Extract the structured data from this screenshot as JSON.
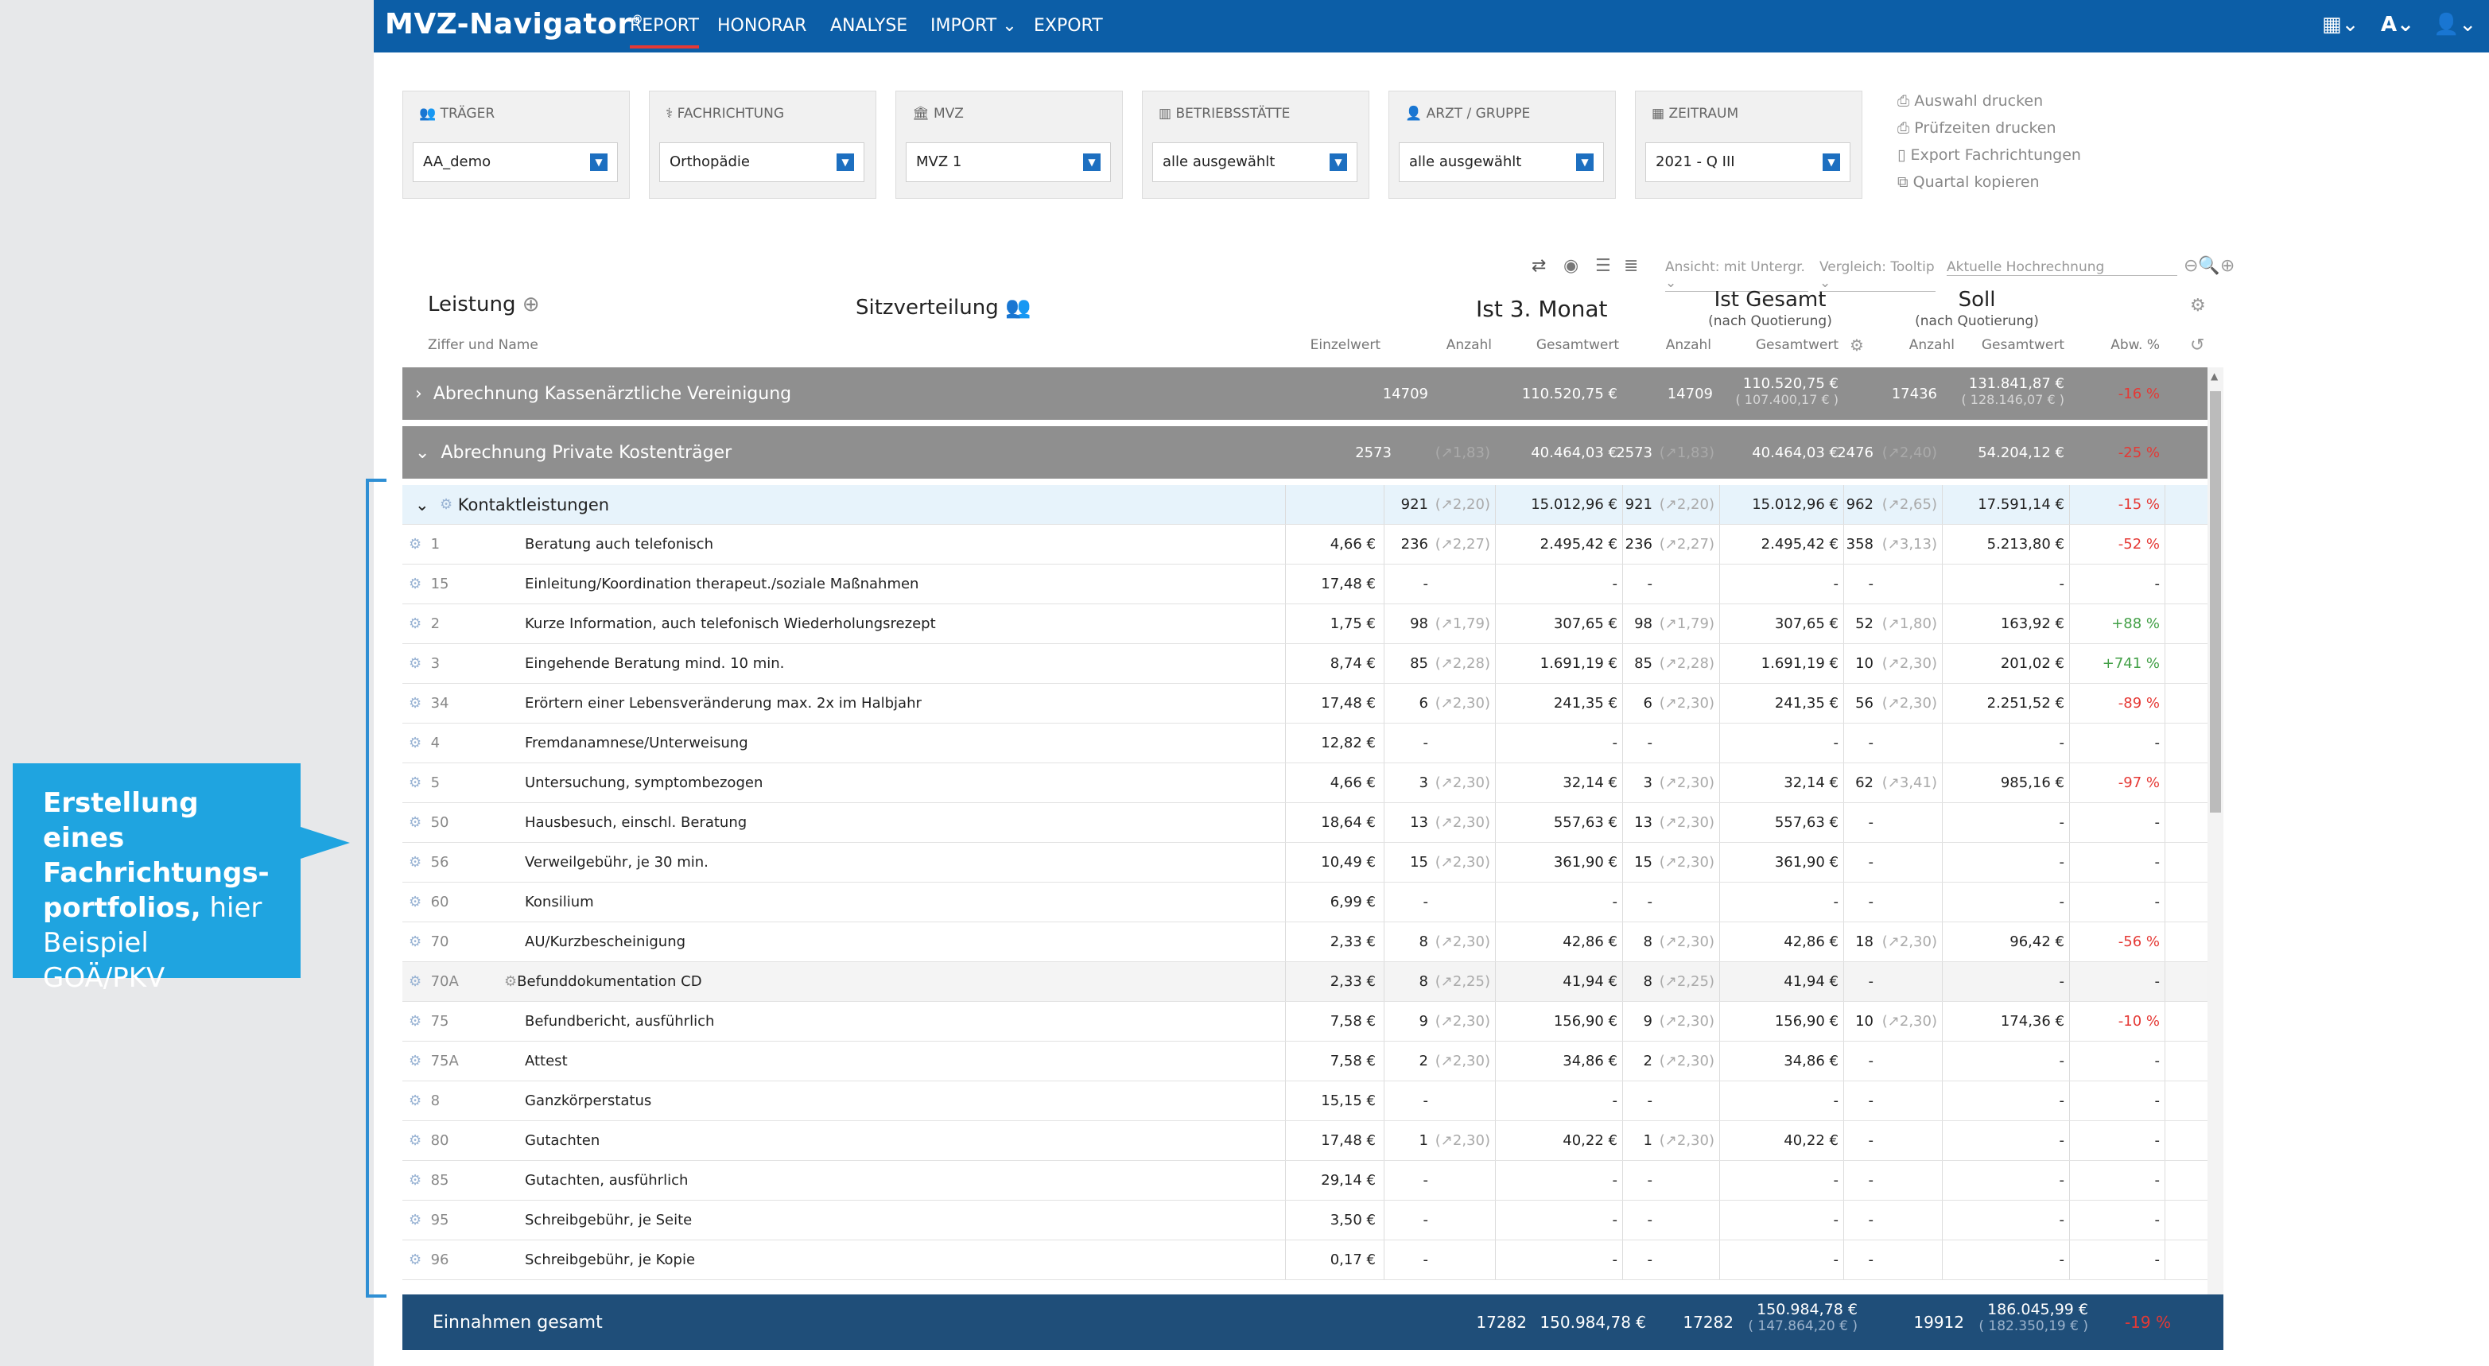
{
  "app": {
    "title": "MVZ-Navigator",
    "trademark": "®"
  },
  "nav": {
    "report": "REPORT",
    "honorar": "HONORAR",
    "analyse": "ANALYSE",
    "import": "IMPORT",
    "export": "EXPORT"
  },
  "filters": [
    {
      "label": "TRÄGER",
      "value": "AA_demo",
      "icon": "group-icon"
    },
    {
      "label": "FACHRICHTUNG",
      "value": "Orthopädie",
      "icon": "stethoscope-icon"
    },
    {
      "label": "MVZ",
      "value": "MVZ 1",
      "icon": "building-icon"
    },
    {
      "label": "BETRIEBSSTÄTTE",
      "value": "alle ausgewählt",
      "icon": "location-icon"
    },
    {
      "label": "ARZT / GRUPPE",
      "value": "alle ausgewählt",
      "icon": "user-icon"
    },
    {
      "label": "ZEITRAUM",
      "value": "2021 - Q III",
      "icon": "calendar-icon"
    }
  ],
  "actions": [
    "Auswahl drucken",
    "Prüfzeiten drucken",
    "Export Fachrichtungen",
    "Quartal kopieren"
  ],
  "toolbar": {
    "ansicht": "Ansicht: mit Untergr.",
    "vergleich": "Vergleich: Tooltip",
    "hochrechnung": "Aktuelle Hochrechnung"
  },
  "header": {
    "leistung": "Leistung",
    "ziffer": "Ziffer und Name",
    "sitz": "Sitzverteilung",
    "ist3": "Ist 3. Monat",
    "istges": "Ist Gesamt",
    "istges_sub": "(nach Quotierung)",
    "soll": "Soll",
    "soll_sub": "(nach Quotierung)",
    "einzelwert": "Einzelwert",
    "anzahl": "Anzahl",
    "gesamtwert": "Gesamtwert",
    "abw": "Abw. %"
  },
  "group1": {
    "label": "Abrechnung Kassenärztliche Vereinigung",
    "a1": "14709",
    "g1": "110.520,75 €",
    "a2": "14709",
    "g2": "110.520,75 €",
    "g2b": "( 107.400,17 € )",
    "a3": "17436",
    "g3": "131.841,87 €",
    "g3b": "( 128.146,07 € )",
    "abw": "-16 %"
  },
  "group2": {
    "label": "Abrechnung Private Kostenträger",
    "a1": "2573",
    "f1": "(↗1,83)",
    "g1": "40.464,03 €",
    "a2": "2573",
    "f2": "(↗1,83)",
    "g2": "40.464,03 €",
    "a3": "2476",
    "f3": "(↗2,40)",
    "g3": "54.204,12 €",
    "abw": "-25 %"
  },
  "subgroup": {
    "label": "Kontaktleistungen",
    "a1": "921",
    "f1": "(↗2,20)",
    "g1": "15.012,96 €",
    "a2": "921",
    "f2": "(↗2,20)",
    "g2": "15.012,96 €",
    "a3": "962",
    "f3": "(↗2,65)",
    "g3": "17.591,14 €",
    "abw": "-15 %"
  },
  "rows": [
    {
      "nr": "1",
      "name": "Beratung auch telefonisch",
      "ew": "4,66 €",
      "a1": "236",
      "f1": "(↗2,27)",
      "g1": "2.495,42 €",
      "a2": "236",
      "f2": "(↗2,27)",
      "g2": "2.495,42 €",
      "a3": "358",
      "f3": "(↗3,13)",
      "g3": "5.213,80 €",
      "abw": "-52 %",
      "abwc": "red"
    },
    {
      "nr": "15",
      "name": "Einleitung/Koordination therapeut./soziale Maßnahmen",
      "ew": "17,48 €",
      "a1": "-",
      "f1": "",
      "g1": "-",
      "a2": "-",
      "f2": "",
      "g2": "-",
      "a3": "-",
      "f3": "",
      "g3": "-",
      "abw": "-",
      "abwc": ""
    },
    {
      "nr": "2",
      "name": "Kurze Information, auch telefonisch Wiederholungsrezept",
      "ew": "1,75 €",
      "a1": "98",
      "f1": "(↗1,79)",
      "g1": "307,65 €",
      "a2": "98",
      "f2": "(↗1,79)",
      "g2": "307,65 €",
      "a3": "52",
      "f3": "(↗1,80)",
      "g3": "163,92 €",
      "abw": "+88 %",
      "abwc": "green"
    },
    {
      "nr": "3",
      "name": "Eingehende Beratung mind. 10 min.",
      "ew": "8,74 €",
      "a1": "85",
      "f1": "(↗2,28)",
      "g1": "1.691,19 €",
      "a2": "85",
      "f2": "(↗2,28)",
      "g2": "1.691,19 €",
      "a3": "10",
      "f3": "(↗2,30)",
      "g3": "201,02 €",
      "abw": "+741 %",
      "abwc": "green"
    },
    {
      "nr": "34",
      "name": "Erörtern einer Lebensveränderung max. 2x im Halbjahr",
      "ew": "17,48 €",
      "a1": "6",
      "f1": "(↗2,30)",
      "g1": "241,35 €",
      "a2": "6",
      "f2": "(↗2,30)",
      "g2": "241,35 €",
      "a3": "56",
      "f3": "(↗2,30)",
      "g3": "2.251,52 €",
      "abw": "-89 %",
      "abwc": "red"
    },
    {
      "nr": "4",
      "name": "Fremdanamnese/Unterweisung",
      "ew": "12,82 €",
      "a1": "-",
      "f1": "",
      "g1": "-",
      "a2": "-",
      "f2": "",
      "g2": "-",
      "a3": "-",
      "f3": "",
      "g3": "-",
      "abw": "-",
      "abwc": ""
    },
    {
      "nr": "5",
      "name": "Untersuchung, symptombezogen",
      "ew": "4,66 €",
      "a1": "3",
      "f1": "(↗2,30)",
      "g1": "32,14 €",
      "a2": "3",
      "f2": "(↗2,30)",
      "g2": "32,14 €",
      "a3": "62",
      "f3": "(↗3,41)",
      "g3": "985,16 €",
      "abw": "-97 %",
      "abwc": "red"
    },
    {
      "nr": "50",
      "name": "Hausbesuch, einschl. Beratung",
      "ew": "18,64 €",
      "a1": "13",
      "f1": "(↗2,30)",
      "g1": "557,63 €",
      "a2": "13",
      "f2": "(↗2,30)",
      "g2": "557,63 €",
      "a3": "-",
      "f3": "",
      "g3": "-",
      "abw": "-",
      "abwc": ""
    },
    {
      "nr": "56",
      "name": "Verweilgebühr, je 30 min.",
      "ew": "10,49 €",
      "a1": "15",
      "f1": "(↗2,30)",
      "g1": "361,90 €",
      "a2": "15",
      "f2": "(↗2,30)",
      "g2": "361,90 €",
      "a3": "-",
      "f3": "",
      "g3": "-",
      "abw": "-",
      "abwc": ""
    },
    {
      "nr": "60",
      "name": "Konsilium",
      "ew": "6,99 €",
      "a1": "-",
      "f1": "",
      "g1": "-",
      "a2": "-",
      "f2": "",
      "g2": "-",
      "a3": "-",
      "f3": "",
      "g3": "-",
      "abw": "-",
      "abwc": ""
    },
    {
      "nr": "70",
      "name": "AU/Kurzbescheinigung",
      "ew": "2,33 €",
      "a1": "8",
      "f1": "(↗2,30)",
      "g1": "42,86 €",
      "a2": "8",
      "f2": "(↗2,30)",
      "g2": "42,86 €",
      "a3": "18",
      "f3": "(↗2,30)",
      "g3": "96,42 €",
      "abw": "-56 %",
      "abwc": "red"
    },
    {
      "nr": "70A",
      "name": "Befunddokumentation CD",
      "ew": "2,33 €",
      "a1": "8",
      "f1": "(↗2,25)",
      "g1": "41,94 €",
      "a2": "8",
      "f2": "(↗2,25)",
      "g2": "41,94 €",
      "a3": "-",
      "f3": "",
      "g3": "-",
      "abw": "-",
      "abwc": "",
      "special": true
    },
    {
      "nr": "75",
      "name": "Befundbericht, ausführlich",
      "ew": "7,58 €",
      "a1": "9",
      "f1": "(↗2,30)",
      "g1": "156,90 €",
      "a2": "9",
      "f2": "(↗2,30)",
      "g2": "156,90 €",
      "a3": "10",
      "f3": "(↗2,30)",
      "g3": "174,36 €",
      "abw": "-10 %",
      "abwc": "red"
    },
    {
      "nr": "75A",
      "name": "Attest",
      "ew": "7,58 €",
      "a1": "2",
      "f1": "(↗2,30)",
      "g1": "34,86 €",
      "a2": "2",
      "f2": "(↗2,30)",
      "g2": "34,86 €",
      "a3": "-",
      "f3": "",
      "g3": "-",
      "abw": "-",
      "abwc": ""
    },
    {
      "nr": "8",
      "name": "Ganzkörperstatus",
      "ew": "15,15 €",
      "a1": "-",
      "f1": "",
      "g1": "-",
      "a2": "-",
      "f2": "",
      "g2": "-",
      "a3": "-",
      "f3": "",
      "g3": "-",
      "abw": "-",
      "abwc": ""
    },
    {
      "nr": "80",
      "name": "Gutachten",
      "ew": "17,48 €",
      "a1": "1",
      "f1": "(↗2,30)",
      "g1": "40,22 €",
      "a2": "1",
      "f2": "(↗2,30)",
      "g2": "40,22 €",
      "a3": "-",
      "f3": "",
      "g3": "-",
      "abw": "-",
      "abwc": ""
    },
    {
      "nr": "85",
      "name": "Gutachten, ausführlich",
      "ew": "29,14 €",
      "a1": "-",
      "f1": "",
      "g1": "-",
      "a2": "-",
      "f2": "",
      "g2": "-",
      "a3": "-",
      "f3": "",
      "g3": "-",
      "abw": "-",
      "abwc": ""
    },
    {
      "nr": "95",
      "name": "Schreibgebühr, je Seite",
      "ew": "3,50 €",
      "a1": "-",
      "f1": "",
      "g1": "-",
      "a2": "-",
      "f2": "",
      "g2": "-",
      "a3": "-",
      "f3": "",
      "g3": "-",
      "abw": "-",
      "abwc": ""
    },
    {
      "nr": "96",
      "name": "Schreibgebühr, je Kopie",
      "ew": "0,17 €",
      "a1": "-",
      "f1": "",
      "g1": "-",
      "a2": "-",
      "f2": "",
      "g2": "-",
      "a3": "-",
      "f3": "",
      "g3": "-",
      "abw": "-",
      "abwc": ""
    }
  ],
  "footer": {
    "label": "Einnahmen gesamt",
    "a1": "17282",
    "g1": "150.984,78 €",
    "a2": "17282",
    "g2": "150.984,78 €",
    "g2b": "( 147.864,20 € )",
    "a3": "19912",
    "g3": "186.045,99 €",
    "g3b": "( 182.350,19 € )",
    "abw": "-19 %"
  },
  "callout": {
    "bold": "Erstellung eines Fachrichtungs-portfolios,",
    "normal": " hier Beispiel GOÄ/PKV"
  }
}
